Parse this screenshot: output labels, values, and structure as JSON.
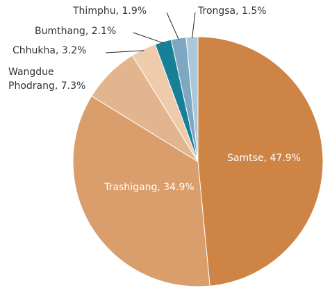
{
  "chart_data": {
    "type": "pie",
    "categories": [
      "Samtse",
      "Trashigang",
      "Wangdue Phodrang",
      "Chhukha",
      "Bumthang",
      "Thimphu",
      "Trongsa"
    ],
    "values": [
      47.9,
      34.9,
      7.3,
      3.2,
      2.1,
      1.9,
      1.5
    ],
    "value_labels": [
      "Samtse, 47.9%",
      "Trashigang, 34.9%",
      "Wangdue Phodrang, 7.3%",
      "Chhukha, 3.2%",
      "Bumthang, 2.1%",
      "Thimphu, 1.9%",
      "Trongsa, 1.5%"
    ],
    "colors": [
      "#cd8444",
      "#d99e6c",
      "#e2b58f",
      "#eecbaa",
      "#177f98",
      "#7ea8c1",
      "#a9c8dc"
    ]
  }
}
